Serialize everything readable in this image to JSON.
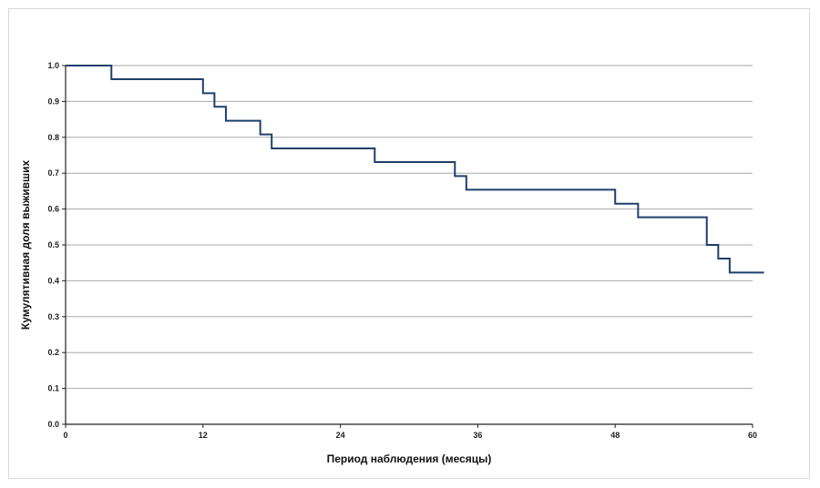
{
  "chart_data": {
    "type": "line",
    "style": "step",
    "xlabel": "Период наблюдения (месяцы)",
    "ylabel": "Кумулятивная доля выживших",
    "xlim": [
      0,
      60
    ],
    "ylim": [
      0,
      1.0
    ],
    "x_ticks": [
      "0",
      "12",
      "24",
      "36",
      "48",
      "60"
    ],
    "y_ticks": [
      "0.0",
      "0.1",
      "0.2",
      "0.3",
      "0.4",
      "0.5",
      "0.6",
      "0.7",
      "0.8",
      "0.9",
      "1.0"
    ],
    "grid": true,
    "line_color": "#1f3f6b",
    "series": [
      {
        "x": [
          0,
          4,
          12,
          13,
          13.5,
          14,
          17,
          18,
          27,
          34,
          35,
          48,
          50,
          56,
          57,
          58,
          61
        ],
        "y": [
          1.0,
          0.962,
          0.923,
          0.885,
          0.885,
          0.846,
          0.808,
          0.769,
          0.731,
          0.692,
          0.654,
          0.615,
          0.577,
          0.5,
          0.462,
          0.423,
          0.423
        ]
      }
    ]
  }
}
